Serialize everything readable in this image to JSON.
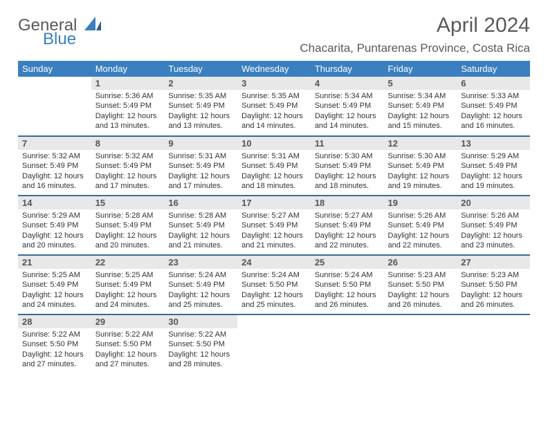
{
  "logo": {
    "text1": "General",
    "text2": "Blue"
  },
  "title": "April 2024",
  "location": "Chacarita, Puntarenas Province, Costa Rica",
  "header_bg": "#3a7fbf",
  "header_fg": "#ffffff",
  "daynum_bg": "#e8e8e8",
  "rule_color": "#3a6b94",
  "weekdays": [
    "Sunday",
    "Monday",
    "Tuesday",
    "Wednesday",
    "Thursday",
    "Friday",
    "Saturday"
  ],
  "weeks": [
    [
      {
        "n": "",
        "lines": [
          "",
          "",
          "",
          ""
        ]
      },
      {
        "n": "1",
        "lines": [
          "Sunrise: 5:36 AM",
          "Sunset: 5:49 PM",
          "Daylight: 12 hours",
          "and 13 minutes."
        ]
      },
      {
        "n": "2",
        "lines": [
          "Sunrise: 5:35 AM",
          "Sunset: 5:49 PM",
          "Daylight: 12 hours",
          "and 13 minutes."
        ]
      },
      {
        "n": "3",
        "lines": [
          "Sunrise: 5:35 AM",
          "Sunset: 5:49 PM",
          "Daylight: 12 hours",
          "and 14 minutes."
        ]
      },
      {
        "n": "4",
        "lines": [
          "Sunrise: 5:34 AM",
          "Sunset: 5:49 PM",
          "Daylight: 12 hours",
          "and 14 minutes."
        ]
      },
      {
        "n": "5",
        "lines": [
          "Sunrise: 5:34 AM",
          "Sunset: 5:49 PM",
          "Daylight: 12 hours",
          "and 15 minutes."
        ]
      },
      {
        "n": "6",
        "lines": [
          "Sunrise: 5:33 AM",
          "Sunset: 5:49 PM",
          "Daylight: 12 hours",
          "and 16 minutes."
        ]
      }
    ],
    [
      {
        "n": "7",
        "lines": [
          "Sunrise: 5:32 AM",
          "Sunset: 5:49 PM",
          "Daylight: 12 hours",
          "and 16 minutes."
        ]
      },
      {
        "n": "8",
        "lines": [
          "Sunrise: 5:32 AM",
          "Sunset: 5:49 PM",
          "Daylight: 12 hours",
          "and 17 minutes."
        ]
      },
      {
        "n": "9",
        "lines": [
          "Sunrise: 5:31 AM",
          "Sunset: 5:49 PM",
          "Daylight: 12 hours",
          "and 17 minutes."
        ]
      },
      {
        "n": "10",
        "lines": [
          "Sunrise: 5:31 AM",
          "Sunset: 5:49 PM",
          "Daylight: 12 hours",
          "and 18 minutes."
        ]
      },
      {
        "n": "11",
        "lines": [
          "Sunrise: 5:30 AM",
          "Sunset: 5:49 PM",
          "Daylight: 12 hours",
          "and 18 minutes."
        ]
      },
      {
        "n": "12",
        "lines": [
          "Sunrise: 5:30 AM",
          "Sunset: 5:49 PM",
          "Daylight: 12 hours",
          "and 19 minutes."
        ]
      },
      {
        "n": "13",
        "lines": [
          "Sunrise: 5:29 AM",
          "Sunset: 5:49 PM",
          "Daylight: 12 hours",
          "and 19 minutes."
        ]
      }
    ],
    [
      {
        "n": "14",
        "lines": [
          "Sunrise: 5:29 AM",
          "Sunset: 5:49 PM",
          "Daylight: 12 hours",
          "and 20 minutes."
        ]
      },
      {
        "n": "15",
        "lines": [
          "Sunrise: 5:28 AM",
          "Sunset: 5:49 PM",
          "Daylight: 12 hours",
          "and 20 minutes."
        ]
      },
      {
        "n": "16",
        "lines": [
          "Sunrise: 5:28 AM",
          "Sunset: 5:49 PM",
          "Daylight: 12 hours",
          "and 21 minutes."
        ]
      },
      {
        "n": "17",
        "lines": [
          "Sunrise: 5:27 AM",
          "Sunset: 5:49 PM",
          "Daylight: 12 hours",
          "and 21 minutes."
        ]
      },
      {
        "n": "18",
        "lines": [
          "Sunrise: 5:27 AM",
          "Sunset: 5:49 PM",
          "Daylight: 12 hours",
          "and 22 minutes."
        ]
      },
      {
        "n": "19",
        "lines": [
          "Sunrise: 5:26 AM",
          "Sunset: 5:49 PM",
          "Daylight: 12 hours",
          "and 22 minutes."
        ]
      },
      {
        "n": "20",
        "lines": [
          "Sunrise: 5:26 AM",
          "Sunset: 5:49 PM",
          "Daylight: 12 hours",
          "and 23 minutes."
        ]
      }
    ],
    [
      {
        "n": "21",
        "lines": [
          "Sunrise: 5:25 AM",
          "Sunset: 5:49 PM",
          "Daylight: 12 hours",
          "and 24 minutes."
        ]
      },
      {
        "n": "22",
        "lines": [
          "Sunrise: 5:25 AM",
          "Sunset: 5:49 PM",
          "Daylight: 12 hours",
          "and 24 minutes."
        ]
      },
      {
        "n": "23",
        "lines": [
          "Sunrise: 5:24 AM",
          "Sunset: 5:49 PM",
          "Daylight: 12 hours",
          "and 25 minutes."
        ]
      },
      {
        "n": "24",
        "lines": [
          "Sunrise: 5:24 AM",
          "Sunset: 5:50 PM",
          "Daylight: 12 hours",
          "and 25 minutes."
        ]
      },
      {
        "n": "25",
        "lines": [
          "Sunrise: 5:24 AM",
          "Sunset: 5:50 PM",
          "Daylight: 12 hours",
          "and 26 minutes."
        ]
      },
      {
        "n": "26",
        "lines": [
          "Sunrise: 5:23 AM",
          "Sunset: 5:50 PM",
          "Daylight: 12 hours",
          "and 26 minutes."
        ]
      },
      {
        "n": "27",
        "lines": [
          "Sunrise: 5:23 AM",
          "Sunset: 5:50 PM",
          "Daylight: 12 hours",
          "and 26 minutes."
        ]
      }
    ],
    [
      {
        "n": "28",
        "lines": [
          "Sunrise: 5:22 AM",
          "Sunset: 5:50 PM",
          "Daylight: 12 hours",
          "and 27 minutes."
        ]
      },
      {
        "n": "29",
        "lines": [
          "Sunrise: 5:22 AM",
          "Sunset: 5:50 PM",
          "Daylight: 12 hours",
          "and 27 minutes."
        ]
      },
      {
        "n": "30",
        "lines": [
          "Sunrise: 5:22 AM",
          "Sunset: 5:50 PM",
          "Daylight: 12 hours",
          "and 28 minutes."
        ]
      },
      {
        "n": "",
        "lines": [
          "",
          "",
          "",
          ""
        ]
      },
      {
        "n": "",
        "lines": [
          "",
          "",
          "",
          ""
        ]
      },
      {
        "n": "",
        "lines": [
          "",
          "",
          "",
          ""
        ]
      },
      {
        "n": "",
        "lines": [
          "",
          "",
          "",
          ""
        ]
      }
    ]
  ]
}
